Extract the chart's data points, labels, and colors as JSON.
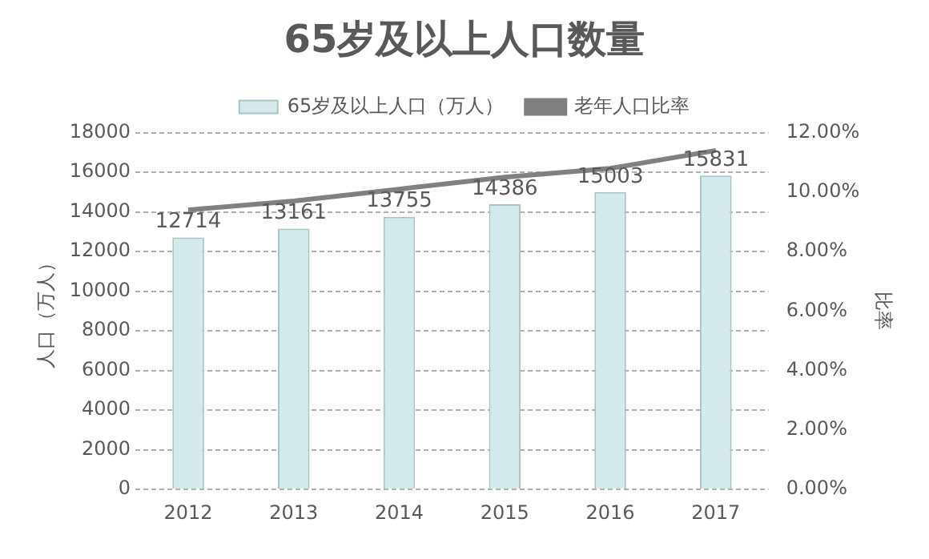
{
  "chart_data": {
    "type": "bar",
    "title": "65岁及以上人口数量",
    "ylabel": "人口（万人）",
    "y2label": "比率",
    "categories": [
      "2012",
      "2013",
      "2014",
      "2015",
      "2016",
      "2017"
    ],
    "series": [
      {
        "name": "65岁及以上人口（万人）",
        "color": "#d3e9ec",
        "values": [
          12714,
          13161,
          13755,
          14386,
          15003,
          15831
        ],
        "value_labels": [
          "12714",
          "13161",
          "13755",
          "14386",
          "15003",
          "15831"
        ]
      },
      {
        "name": "老年人口比率",
        "type": "line",
        "axis": "y2",
        "color": "#808080",
        "values": [
          9.4,
          9.7,
          10.1,
          10.5,
          10.8,
          11.4
        ]
      }
    ],
    "ylim": [
      0,
      18000
    ],
    "yticks": [
      0,
      2000,
      4000,
      6000,
      8000,
      10000,
      12000,
      14000,
      16000,
      18000
    ],
    "y2lim": [
      0,
      12
    ],
    "y2ticks": [
      {
        "value": 0,
        "label": "0.00%"
      },
      {
        "value": 2,
        "label": "2.00%"
      },
      {
        "value": 4,
        "label": "4.00%"
      },
      {
        "value": 6,
        "label": "6.00%"
      },
      {
        "value": 8,
        "label": "8.00%"
      },
      {
        "value": 10,
        "label": "10.00%"
      },
      {
        "value": 12,
        "label": "12.00%"
      }
    ],
    "grid": "y",
    "legend": "top",
    "marker": "none"
  }
}
